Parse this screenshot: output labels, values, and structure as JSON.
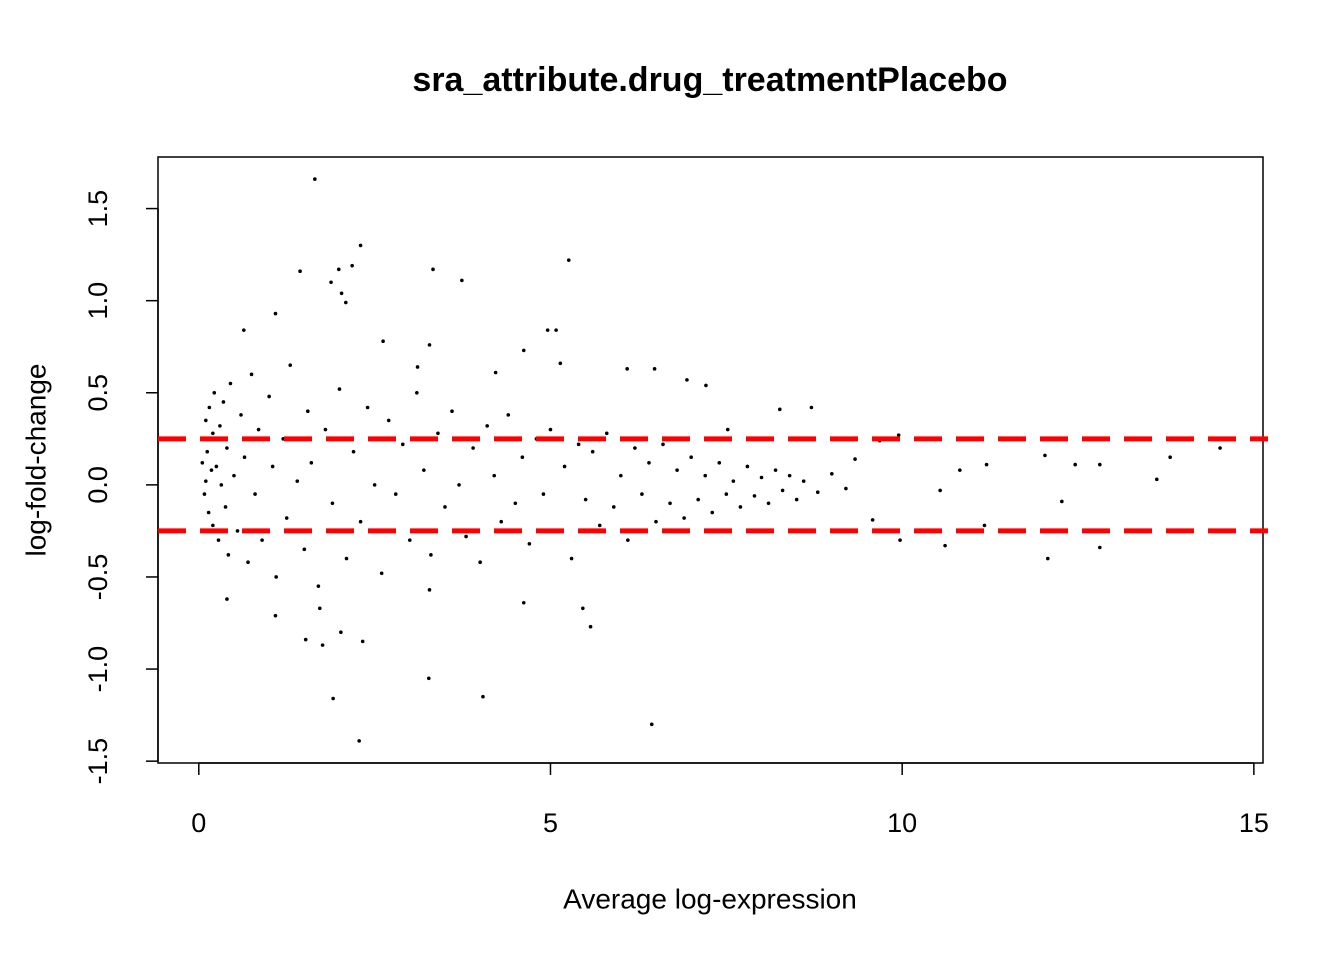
{
  "chart_data": {
    "type": "scatter",
    "title": "sra_attribute.drug_treatmentPlacebo",
    "x_label": "Average log-expression",
    "y_label": "log-fold-change",
    "xlim": [
      -0.58,
      15.13
    ],
    "ylim": [
      -1.51,
      1.78
    ],
    "xticks": [
      0,
      5,
      10,
      15
    ],
    "yticks": [
      -1.5,
      {
        "value": -1.0,
        "label": "-1.0"
      },
      -0.5,
      {
        "value": 0.0,
        "label": "0.0"
      },
      0.5,
      {
        "value": 1.0,
        "label": "1.0"
      },
      1.5
    ],
    "color": "#000000",
    "hlines": {
      "values": [
        0.25,
        -0.25
      ],
      "color": "#ff0000"
    },
    "x": [
      1.65,
      2.3,
      1.44,
      1.99,
      2.18,
      1.88,
      2.03,
      2.09,
      3.33,
      3.74,
      5.26,
      4.96,
      5.08,
      1.09,
      0.64,
      6.48,
      6.09,
      6.94,
      8.26,
      8.71,
      14.52,
      13.81,
      13.62,
      12.81,
      12.46,
      12.03,
      12.27,
      12.81,
      12.07,
      11.2,
      10.82,
      10.54,
      10.61,
      11.17,
      9.95,
      9.68,
      3.27,
      4.04,
      1.91,
      2.28,
      6.44,
      5.57,
      5.46,
      4.62,
      1.52,
      1.76,
      2.33,
      2.02,
      0.4,
      1.09,
      1.72,
      3.28,
      4.22,
      4.62,
      5.14,
      3.28,
      2.62,
      3.11,
      7.21,
      7.52,
      9.33,
      9.97,
      9.58,
      0.05,
      0.06,
      0.08,
      0.1,
      0.1,
      0.12,
      0.14,
      0.15,
      0.18,
      0.2,
      0.2,
      0.22,
      0.25,
      0.28,
      0.3,
      0.32,
      0.35,
      0.38,
      0.4,
      0.42,
      0.45,
      0.5,
      0.55,
      0.6,
      0.65,
      0.7,
      0.75,
      0.8,
      0.85,
      0.9,
      1.0,
      1.05,
      1.1,
      1.2,
      1.25,
      1.3,
      1.4,
      1.5,
      1.55,
      1.6,
      1.7,
      1.8,
      1.9,
      2.0,
      2.1,
      2.2,
      2.3,
      2.4,
      2.5,
      2.6,
      2.7,
      2.8,
      2.9,
      3.0,
      3.1,
      3.2,
      3.3,
      3.4,
      3.5,
      3.6,
      3.7,
      3.8,
      3.9,
      4.0,
      4.1,
      4.2,
      4.3,
      4.4,
      4.5,
      4.6,
      4.7,
      4.8,
      4.9,
      5.0,
      5.1,
      5.2,
      5.3,
      5.4,
      5.5,
      5.6,
      5.7,
      5.8,
      5.9,
      6.0,
      6.1,
      6.2,
      6.3,
      6.4,
      6.5,
      6.6,
      6.7,
      6.8,
      6.9,
      7.0,
      7.1,
      7.2,
      7.3,
      7.4,
      7.5,
      7.6,
      7.7,
      7.8,
      7.9,
      8.0,
      8.1,
      8.2,
      8.3,
      8.4,
      8.5,
      8.6,
      8.8,
      9.0,
      9.2
    ],
    "y": [
      1.66,
      1.3,
      1.16,
      1.17,
      1.19,
      1.1,
      1.04,
      0.99,
      1.17,
      1.11,
      1.22,
      0.84,
      0.84,
      0.93,
      0.84,
      0.63,
      0.63,
      0.57,
      0.41,
      0.42,
      0.2,
      0.15,
      0.03,
      0.11,
      0.11,
      0.16,
      -0.09,
      -0.34,
      -0.4,
      0.11,
      0.08,
      -0.03,
      -0.33,
      -0.22,
      0.27,
      0.24,
      -1.05,
      -1.15,
      -1.16,
      -1.39,
      -1.3,
      -0.77,
      -0.67,
      -0.64,
      -0.84,
      -0.87,
      -0.85,
      -0.8,
      -0.62,
      -0.71,
      -0.67,
      -0.57,
      0.61,
      0.73,
      0.66,
      0.76,
      0.78,
      0.64,
      0.54,
      0.3,
      0.14,
      -0.3,
      -0.19,
      0.12,
      0.25,
      -0.05,
      0.35,
      0.02,
      0.18,
      -0.15,
      0.42,
      0.08,
      0.28,
      -0.22,
      0.5,
      0.1,
      -0.3,
      0.32,
      0.0,
      0.45,
      -0.12,
      0.2,
      -0.38,
      0.55,
      0.05,
      -0.25,
      0.38,
      0.15,
      -0.42,
      0.6,
      -0.05,
      0.3,
      -0.3,
      0.48,
      0.1,
      -0.5,
      0.25,
      -0.18,
      0.65,
      0.02,
      -0.35,
      0.4,
      0.12,
      -0.55,
      0.3,
      -0.1,
      0.52,
      -0.4,
      0.18,
      -0.2,
      0.42,
      0.0,
      -0.48,
      0.35,
      -0.05,
      0.22,
      -0.3,
      0.5,
      0.08,
      -0.38,
      0.28,
      -0.12,
      0.4,
      0.0,
      -0.28,
      0.2,
      -0.42,
      0.32,
      0.05,
      -0.2,
      0.38,
      -0.1,
      0.15,
      -0.32,
      0.25,
      -0.05,
      0.3,
      -0.25,
      0.1,
      -0.4,
      0.22,
      -0.08,
      0.18,
      -0.22,
      0.28,
      -0.12,
      0.05,
      -0.3,
      0.2,
      -0.05,
      0.12,
      -0.2,
      0.22,
      -0.1,
      0.08,
      -0.18,
      0.15,
      -0.08,
      0.05,
      -0.15,
      0.12,
      -0.05,
      0.02,
      -0.12,
      0.1,
      -0.06,
      0.04,
      -0.1,
      0.08,
      -0.03,
      0.05,
      -0.08,
      0.02,
      -0.04,
      0.06,
      -0.02
    ]
  }
}
